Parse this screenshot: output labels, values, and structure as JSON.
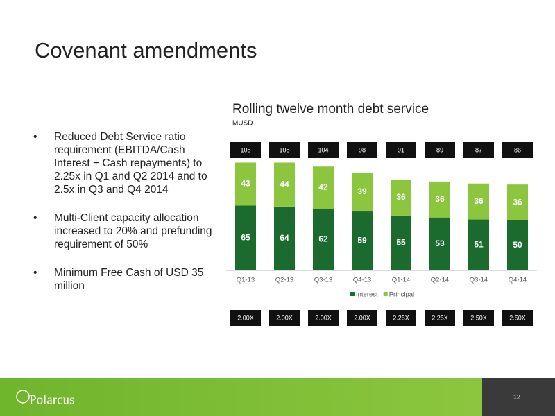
{
  "title": "Covenant amendments",
  "bullets": [
    "Reduced Debt Service ratio requirement (EBITDA/Cash Interest + Cash repayments) to 2.25x in Q1 and Q2 2014 and to 2.5x in Q3 and Q4 2014",
    "Multi-Client capacity allocation increased to 20% and prefunding requirement of 50%",
    "Minimum Free Cash of USD 35 million"
  ],
  "chart_data": {
    "type": "bar",
    "stacked": true,
    "title": "Rolling twelve month debt service",
    "subtitle": "MUSD",
    "categories": [
      "Q1-13",
      "Q2-13",
      "Q3-13",
      "Q4-13",
      "Q1-14",
      "Q2-14",
      "Q3-14",
      "Q4-14"
    ],
    "series": [
      {
        "name": "Interest",
        "color": "#1b6b2f",
        "values": [
          65,
          64,
          62,
          59,
          55,
          53,
          51,
          50
        ]
      },
      {
        "name": "Principal",
        "color": "#8cc63f",
        "values": [
          43,
          44,
          42,
          39,
          36,
          36,
          36,
          36
        ]
      }
    ],
    "totals": [
      108,
      108,
      104,
      98,
      91,
      89,
      87,
      86
    ],
    "ratios": [
      "2.00X",
      "2.00X",
      "2.00X",
      "2.00X",
      "2.25X",
      "2.25X",
      "2.50X",
      "2.50X"
    ]
  },
  "footer": {
    "logo": "Polarcus",
    "page_number": "12"
  }
}
